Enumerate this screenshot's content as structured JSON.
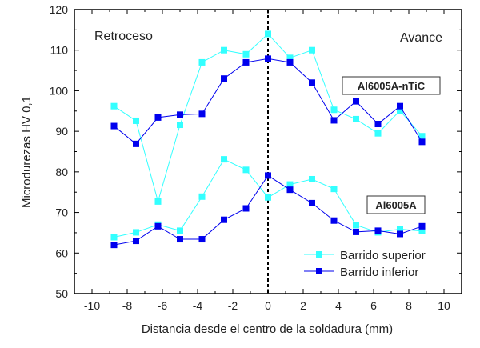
{
  "chart_data": {
    "type": "line",
    "title": "",
    "xlabel": "Distancia desde el centro de la soldadura (mm)",
    "ylabel": "Microdurezas  HV 0,1",
    "xlim": [
      -11,
      11
    ],
    "ylim": [
      50,
      120
    ],
    "xticks": [
      -10,
      -8,
      -6,
      -4,
      -2,
      0,
      2,
      4,
      6,
      8,
      10
    ],
    "yticks": [
      50,
      60,
      70,
      80,
      90,
      100,
      110,
      120
    ],
    "grid": false,
    "legend_placement": "bottom-right",
    "vertical_reference_line_x": 0,
    "annotations": {
      "left": "Retroceso",
      "right": "Avance",
      "upper_group": "Al6005A-nTiC",
      "lower_group": "Al6005A"
    },
    "x": [
      -8.75,
      -7.5,
      -6.25,
      -5,
      -3.75,
      -2.5,
      -1.25,
      0,
      1.25,
      2.5,
      3.75,
      5,
      6.25,
      7.5,
      8.75
    ],
    "series": [
      {
        "name": "Barrido superior",
        "group": "Al6005A-nTiC",
        "color": "#33ffff",
        "values": [
          96.2,
          92.6,
          72.7,
          91.6,
          107.0,
          110.0,
          109.0,
          114.0,
          108.1,
          110.0,
          95.3,
          93.0,
          89.5,
          95.1,
          88.8
        ]
      },
      {
        "name": "Barrido inferior",
        "group": "Al6005A-nTiC",
        "color": "#0000ee",
        "values": [
          91.3,
          86.9,
          93.4,
          94.1,
          94.3,
          103.0,
          107.0,
          107.9,
          107.0,
          102.0,
          92.7,
          97.4,
          91.8,
          96.2,
          87.4
        ]
      },
      {
        "name": "Barrido superior",
        "group": "Al6005A",
        "color": "#33ffff",
        "values": [
          63.9,
          65.1,
          67.0,
          65.5,
          73.9,
          83.1,
          80.5,
          73.7,
          76.9,
          78.2,
          75.8,
          66.9,
          65.1,
          65.9,
          65.4
        ]
      },
      {
        "name": "Barrido inferior",
        "group": "Al6005A",
        "color": "#0000ee",
        "values": [
          62.0,
          63.0,
          66.6,
          63.4,
          63.4,
          68.2,
          71.0,
          79.1,
          75.6,
          72.3,
          68.0,
          65.2,
          65.5,
          64.7,
          66.6
        ]
      }
    ],
    "legend": [
      "Barrido superior",
      "Barrido inferior"
    ]
  }
}
